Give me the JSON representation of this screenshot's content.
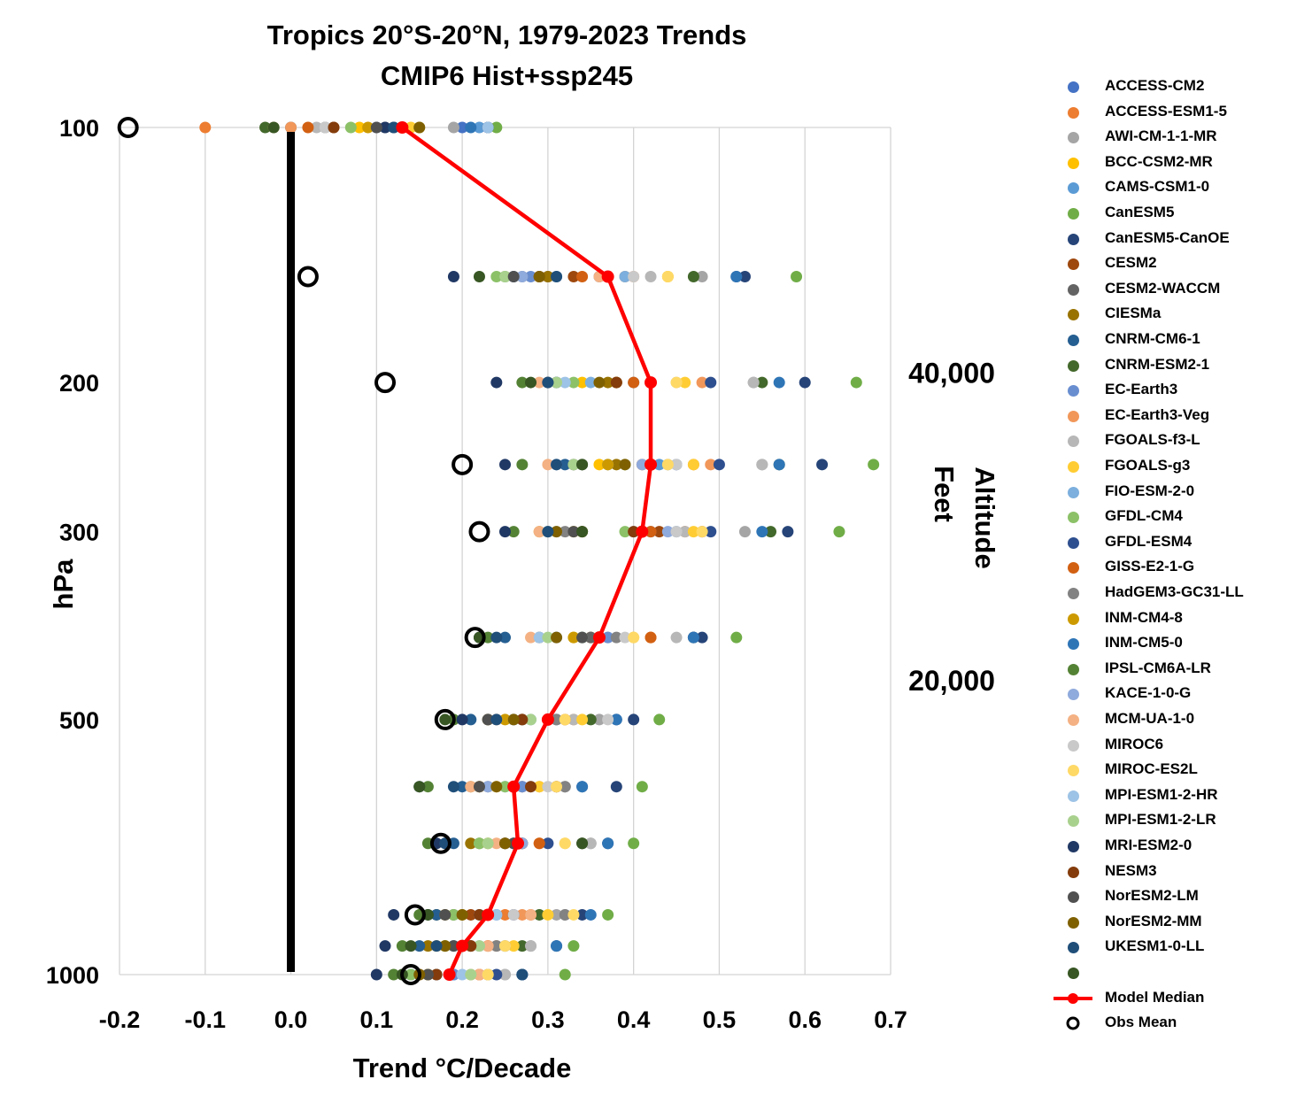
{
  "title_lines": [
    "Tropics 20°S-20°N, 1979-2023 Trends",
    "CMIP6 Hist+ssp245"
  ],
  "chart_data": {
    "type": "scatter",
    "title": "Tropics 20°S-20°N, 1979-2023 Trends CMIP6 Hist+ssp245",
    "xlabel": "Trend °C/Decade",
    "ylabel": "hPa",
    "y2label_lines": [
      "Altitude",
      "Feet"
    ],
    "xlim": [
      -0.2,
      0.7
    ],
    "x_ticks": [
      "-0.2",
      "-0.1",
      "0.0",
      "0.1",
      "0.2",
      "0.3",
      "0.4",
      "0.5",
      "0.6",
      "0.7"
    ],
    "y_scale": "log",
    "y_reversed": true,
    "ylim": [
      100,
      1000
    ],
    "y_ticks": [
      100,
      200,
      300,
      500,
      1000
    ],
    "y_tick_labels": [
      "100",
      "200",
      "300",
      "500",
      "1000"
    ],
    "y2_ticks": [
      {
        "label": "40,000",
        "pressure": 195
      },
      {
        "label": "20,000",
        "pressure": 450
      }
    ],
    "grid": "vertical",
    "legend_position": "right",
    "zero_line": 0.0,
    "pressure_levels": [
      100,
      150,
      200,
      250,
      300,
      400,
      500,
      600,
      700,
      850,
      925,
      1000
    ],
    "model_median": {
      "name": "Model Median",
      "color": "#ff0000",
      "x": [
        0.13,
        0.37,
        0.42,
        0.42,
        0.41,
        0.36,
        0.3,
        0.26,
        0.265,
        0.23,
        0.2,
        0.185
      ],
      "y": [
        100,
        150,
        200,
        250,
        300,
        400,
        500,
        600,
        700,
        850,
        925,
        1000
      ]
    },
    "obs_mean": {
      "name": "Obs Mean",
      "x": [
        -0.19,
        0.02,
        0.11,
        0.2,
        0.22,
        0.215,
        0.18,
        0.175,
        0.145,
        0.14
      ],
      "y": [
        100,
        150,
        200,
        250,
        300,
        400,
        500,
        700,
        850,
        1000
      ]
    },
    "series": [
      {
        "name": "ACCESS-CM2",
        "color": "#4472c4",
        "x": [
          0.2,
          0.36,
          0.38,
          0.45,
          0.48,
          0.36,
          0.3,
          0.27,
          0.25,
          0.23,
          0.2,
          0.19
        ]
      },
      {
        "name": "ACCESS-ESM1-5",
        "color": "#ed7d31",
        "x": [
          -0.1,
          0.39,
          0.42,
          0.47,
          0.46,
          0.42,
          0.3,
          0.27,
          0.27,
          0.25,
          0.23,
          0.22
        ]
      },
      {
        "name": "AWI-CM-1-1-MR",
        "color": "#a5a5a5",
        "x": [
          0.19,
          0.48,
          0.54,
          0.55,
          0.53,
          0.37,
          0.36,
          0.32,
          0.35,
          0.31,
          0.28,
          0.25
        ]
      },
      {
        "name": "BCC-CSM2-MR",
        "color": "#ffc000",
        "x": [
          0.08,
          0.44,
          0.34,
          0.36,
          0.33,
          0.33,
          0.27,
          0.24,
          0.22,
          0.2,
          0.18,
          0.17
        ]
      },
      {
        "name": "CAMS-CSM1-0",
        "color": "#5b9bd5",
        "x": [
          0.22,
          0.31,
          0.4,
          0.43,
          0.45,
          0.31,
          0.26,
          0.28,
          0.27,
          0.23,
          0.21,
          0.19
        ]
      },
      {
        "name": "CanESM5",
        "color": "#70ad47",
        "x": [
          0.24,
          0.59,
          0.66,
          0.68,
          0.64,
          0.52,
          0.43,
          0.41,
          0.4,
          0.37,
          0.33,
          0.32
        ]
      },
      {
        "name": "CanESM5-CanOE",
        "color": "#264478",
        "x": [
          0.23,
          0.53,
          0.6,
          0.62,
          0.58,
          0.48,
          0.4,
          0.38,
          0.37,
          0.34,
          0.31,
          0.27
        ]
      },
      {
        "name": "CESM2",
        "color": "#9e480e",
        "x": [
          0.05,
          0.33,
          0.38,
          0.42,
          0.43,
          0.35,
          0.3,
          0.22,
          0.27,
          0.21,
          0.21,
          0.15
        ]
      },
      {
        "name": "CESM2-WACCM",
        "color": "#636363",
        "x": [
          0.04,
          0.3,
          0.31,
          0.33,
          0.34,
          0.35,
          0.23,
          0.23,
          0.26,
          0.19,
          0.2,
          0.17
        ]
      },
      {
        "name": "CIESMa",
        "color": "#997300",
        "x": [
          0.12,
          0.3,
          0.37,
          0.38,
          0.34,
          0.29,
          0.23,
          0.21,
          0.21,
          0.17,
          0.16,
          0.16
        ]
      },
      {
        "name": "CNRM-CM6-1",
        "color": "#255e91",
        "x": [
          0.0,
          0.26,
          0.31,
          0.32,
          0.3,
          0.25,
          0.21,
          0.2,
          0.19,
          0.17,
          0.15,
          0.14
        ]
      },
      {
        "name": "CNRM-ESM2-1",
        "color": "#43682b",
        "x": [
          -0.03,
          0.47,
          0.55,
          0.57,
          0.56,
          0.47,
          0.35,
          0.31,
          0.34,
          0.29,
          0.27,
          0.23
        ]
      },
      {
        "name": "EC-Earth3",
        "color": "#698ed0",
        "x": [
          0.1,
          0.28,
          0.42,
          0.44,
          0.42,
          0.37,
          0.31,
          0.27,
          0.26,
          0.24,
          0.2,
          0.19
        ]
      },
      {
        "name": "EC-Earth3-Veg",
        "color": "#f1975a",
        "x": [
          0.0,
          0.4,
          0.48,
          0.49,
          0.48,
          0.42,
          0.33,
          0.29,
          0.29,
          0.27,
          0.24,
          0.21
        ]
      },
      {
        "name": "FGOALS-f3-L",
        "color": "#b7b7b7",
        "x": [
          0.03,
          0.42,
          0.54,
          0.55,
          0.46,
          0.45,
          0.33,
          0.32,
          0.35,
          0.32,
          0.28,
          0.25
        ]
      },
      {
        "name": "FGOALS-g3",
        "color": "#ffcd33",
        "x": [
          0.14,
          0.44,
          0.46,
          0.47,
          0.47,
          0.4,
          0.34,
          0.29,
          0.32,
          0.3,
          0.26,
          0.23
        ]
      },
      {
        "name": "FIO-ESM-2-0",
        "color": "#7cafdd",
        "x": [
          0.13,
          0.39,
          0.35,
          0.37,
          0.4,
          0.34,
          0.28,
          0.25,
          0.22,
          0.22,
          0.19,
          0.17
        ]
      },
      {
        "name": "GFDL-CM4",
        "color": "#8cc168",
        "x": [
          0.07,
          0.24,
          0.33,
          0.39,
          0.39,
          0.34,
          0.27,
          0.25,
          0.22,
          0.19,
          0.18,
          0.14
        ]
      },
      {
        "name": "GFDL-ESM4",
        "color": "#2e4f8f",
        "x": [
          0.23,
          0.52,
          0.49,
          0.5,
          0.49,
          0.47,
          0.38,
          0.34,
          0.3,
          0.26,
          0.25,
          0.24
        ]
      },
      {
        "name": "GISS-E2-1-G",
        "color": "#d26012",
        "x": [
          0.02,
          0.34,
          0.4,
          0.41,
          0.42,
          0.42,
          0.32,
          0.31,
          0.29,
          0.28,
          0.23,
          0.22
        ]
      },
      {
        "name": "HadGEM3-GC31-LL",
        "color": "#828282",
        "x": [
          0.11,
          0.27,
          0.3,
          0.33,
          0.32,
          0.38,
          0.31,
          0.32,
          0.34,
          0.32,
          0.24,
          0.23
        ]
      },
      {
        "name": "INM-CM4-8",
        "color": "#cc9a00",
        "x": [
          0.09,
          0.29,
          0.38,
          0.37,
          0.29,
          0.33,
          0.25,
          0.22,
          0.23,
          0.18,
          0.17,
          0.16
        ]
      },
      {
        "name": "INM-CM5-0",
        "color": "#2e75b6",
        "x": [
          0.21,
          0.52,
          0.57,
          0.57,
          0.55,
          0.47,
          0.38,
          0.34,
          0.37,
          0.35,
          0.31,
          0.27
        ]
      },
      {
        "name": "IPSL-CM6A-LR",
        "color": "#548235",
        "x": [
          0.15,
          0.25,
          0.27,
          0.27,
          0.26,
          0.23,
          0.19,
          0.16,
          0.16,
          0.15,
          0.13,
          0.12
        ]
      },
      {
        "name": "KACE-1-0-G",
        "color": "#8faadc",
        "x": [
          0.12,
          0.27,
          0.42,
          0.41,
          0.44,
          0.29,
          0.27,
          0.23,
          0.27,
          0.22,
          0.19,
          0.17
        ]
      },
      {
        "name": "MCM-UA-1-0",
        "color": "#f4b183",
        "x": [
          -0.02,
          0.36,
          0.29,
          0.3,
          0.29,
          0.28,
          0.24,
          0.21,
          0.24,
          0.28,
          0.23,
          0.22
        ]
      },
      {
        "name": "MIROC6",
        "color": "#c9c9c9",
        "x": [
          0.04,
          0.4,
          0.45,
          0.45,
          0.45,
          0.39,
          0.37,
          0.3,
          0.25,
          0.26,
          0.25,
          0.23
        ]
      },
      {
        "name": "MIROC-ES2L",
        "color": "#ffd966",
        "x": [
          0.15,
          0.44,
          0.45,
          0.44,
          0.48,
          0.4,
          0.32,
          0.31,
          0.32,
          0.33,
          0.25,
          0.23
        ]
      },
      {
        "name": "MPI-ESM1-2-HR",
        "color": "#9dc3e6",
        "x": [
          0.23,
          0.37,
          0.32,
          0.31,
          0.31,
          0.29,
          0.26,
          0.26,
          0.25,
          0.24,
          0.22,
          0.2
        ]
      },
      {
        "name": "MPI-ESM1-2-LR",
        "color": "#a9d18e",
        "x": [
          0.13,
          0.25,
          0.31,
          0.33,
          0.3,
          0.3,
          0.28,
          0.26,
          0.23,
          0.23,
          0.22,
          0.21
        ]
      },
      {
        "name": "MRI-ESM2-0",
        "color": "#203864",
        "x": [
          0.11,
          0.19,
          0.24,
          0.25,
          0.25,
          0.22,
          0.2,
          0.15,
          0.17,
          0.12,
          0.11,
          0.1
        ]
      },
      {
        "name": "NESM3",
        "color": "#843c0c",
        "x": [
          0.05,
          0.29,
          0.38,
          0.42,
          0.4,
          0.36,
          0.27,
          0.28,
          0.25,
          0.22,
          0.21,
          0.17
        ]
      },
      {
        "name": "NorESM2-LM",
        "color": "#505050",
        "x": [
          0.1,
          0.26,
          0.3,
          0.34,
          0.33,
          0.34,
          0.23,
          0.22,
          0.26,
          0.18,
          0.19,
          0.16
        ]
      },
      {
        "name": "NorESM2-MM",
        "color": "#7f6000",
        "x": [
          0.15,
          0.29,
          0.36,
          0.39,
          0.31,
          0.31,
          0.26,
          0.24,
          0.25,
          0.2,
          0.18,
          0.15
        ]
      },
      {
        "name": "UKESM1-0-LL",
        "color": "#1f4e79",
        "x": [
          0.12,
          0.31,
          0.3,
          0.31,
          0.3,
          0.24,
          0.24,
          0.19,
          0.18,
          0.16,
          0.17,
          0.27
        ]
      },
      {
        "name": "",
        "color": "#375623",
        "x": [
          -0.02,
          0.22,
          0.28,
          0.34,
          0.34,
          0.22,
          0.18,
          0.15,
          0.34,
          0.16,
          0.14,
          0.13
        ]
      }
    ]
  }
}
